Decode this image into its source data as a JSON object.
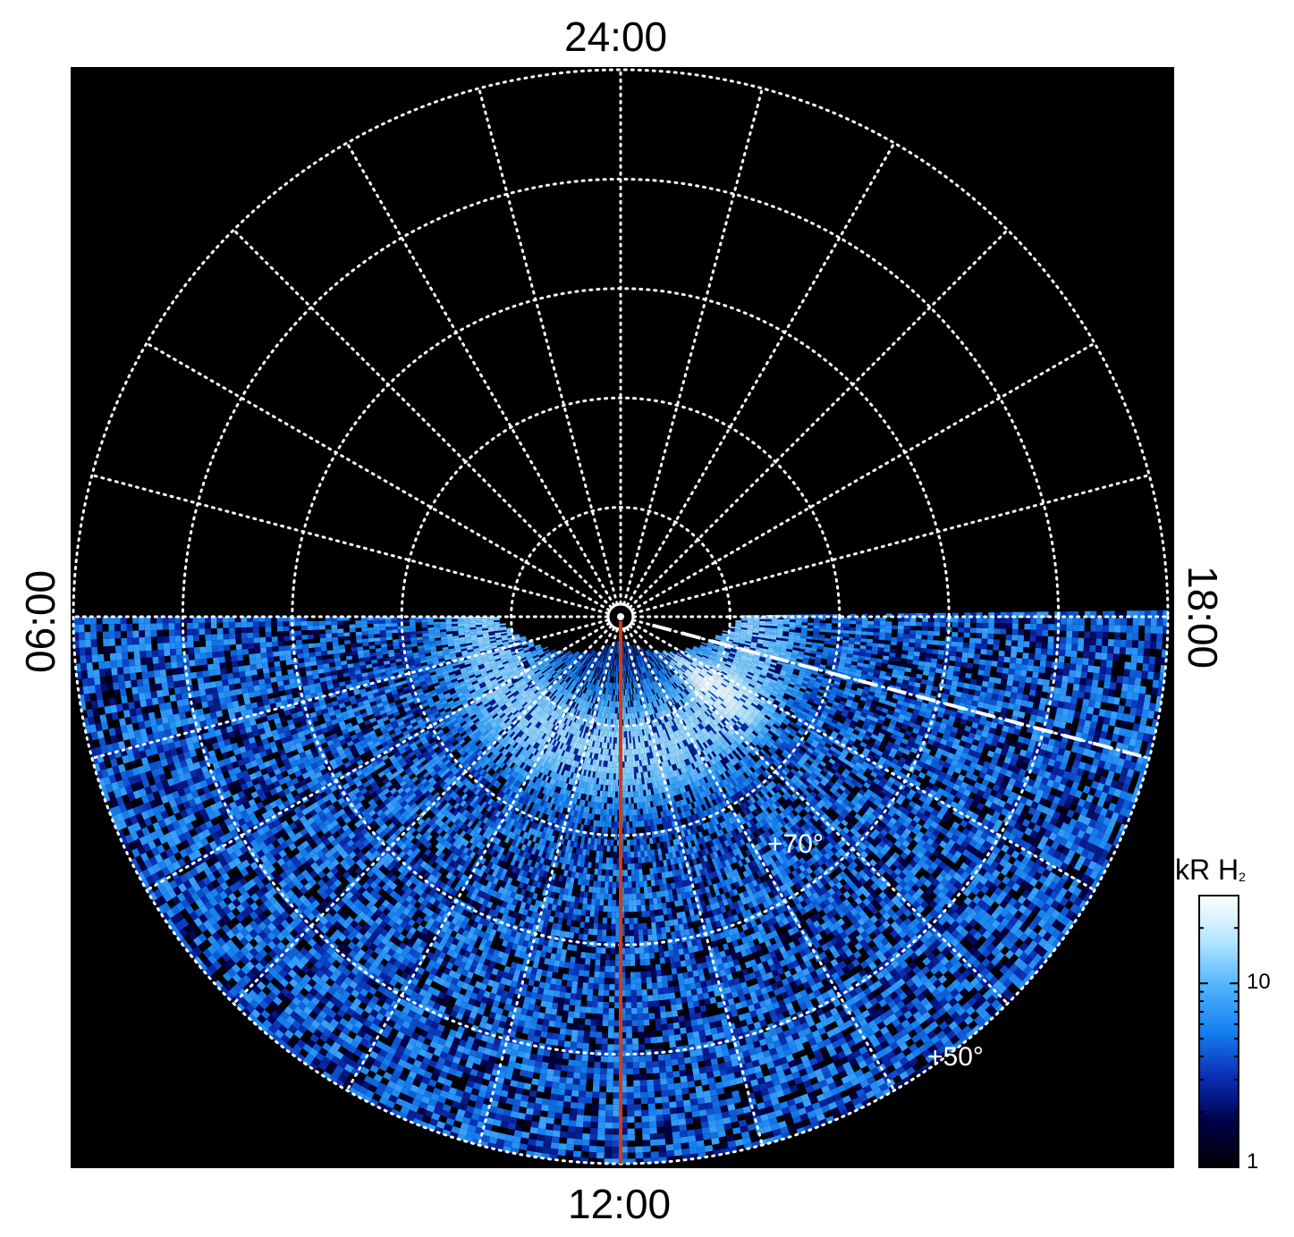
{
  "chart_data": {
    "type": "heatmap",
    "projection": "polar",
    "hemisphere": "north",
    "title": "",
    "local_time_labels": {
      "top": "24:00",
      "bottom": "12:00",
      "left": "06:00",
      "right": "18:00"
    },
    "latitude_labels": [
      "+70°",
      "+50°"
    ],
    "latitude_grid_deg": [
      80,
      70,
      60,
      50,
      40
    ],
    "longitude_grid_spacing_hours": 1,
    "grid": true,
    "colorbar": {
      "title_main": "kR H",
      "title_sub": "2",
      "scale": "log",
      "range": [
        1,
        30
      ],
      "ticks": [
        1,
        10
      ],
      "tick_labels": [
        "1",
        "10"
      ],
      "colors": [
        "#000000",
        "#00004a",
        "#0a2eb4",
        "#1480f0",
        "#50b4ff",
        "#b4e6ff",
        "#ffffff"
      ],
      "position": "right"
    },
    "observed_region": {
      "local_time_hours": [
        6,
        18
      ],
      "side": "dayside"
    },
    "auroral_oval": {
      "peak_colatitude_deg": 12,
      "brightest_local_time_hours": 15.5,
      "peak_kR": 25
    },
    "annotations": [
      {
        "type": "meridian_line",
        "local_time_hours": 12,
        "color": "#d23c14"
      },
      {
        "type": "dashed_line",
        "local_time_hours": 17.0,
        "color": "#ffffff"
      }
    ]
  }
}
